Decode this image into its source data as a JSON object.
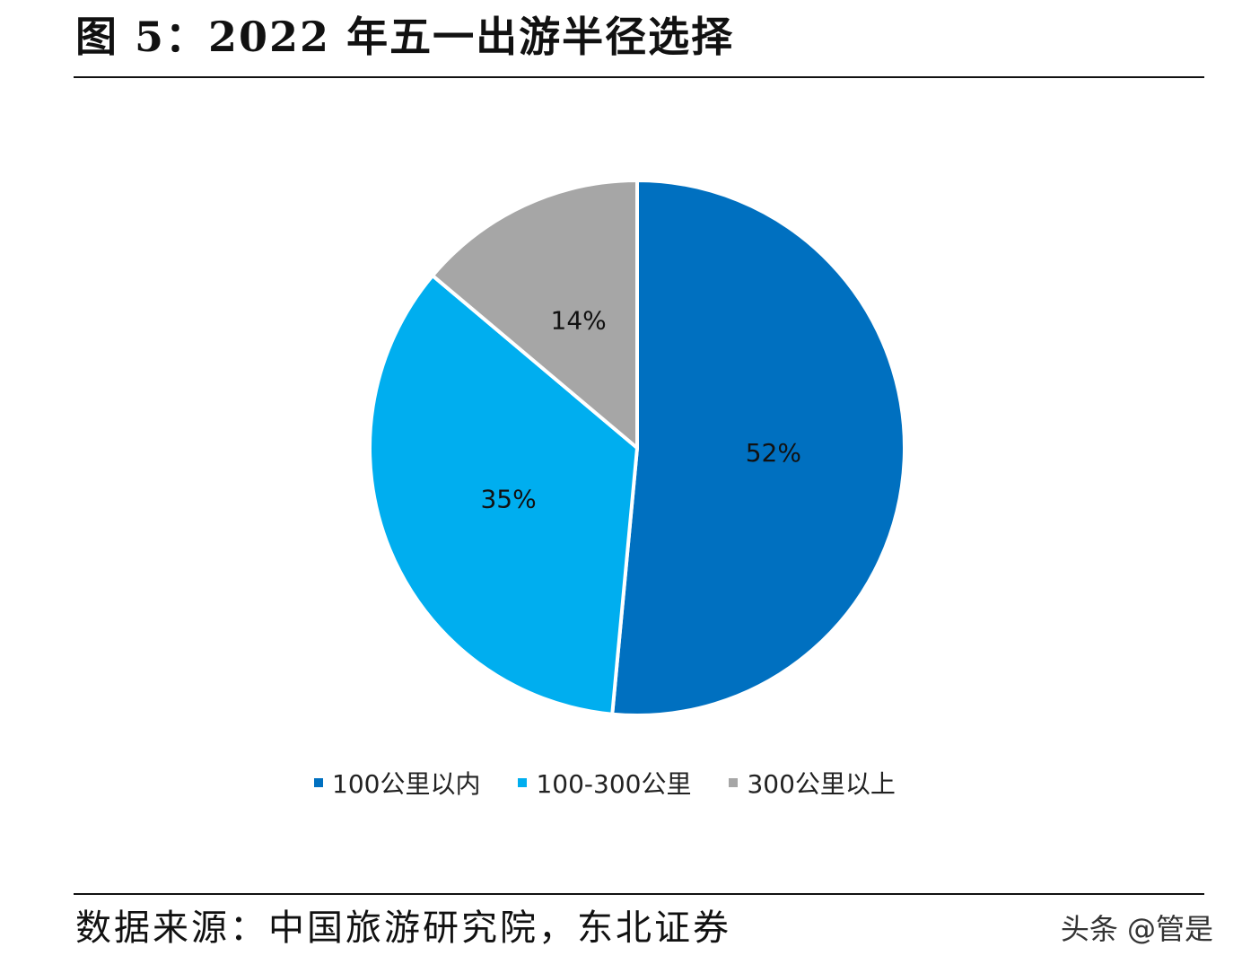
{
  "figure": {
    "title": "图 5：2022 年五一出游半径选择",
    "source": "数据来源：中国旅游研究院，东北证券"
  },
  "watermark": "头条 @管是",
  "chart_data": {
    "type": "pie",
    "title": "",
    "legend_position": "bottom",
    "slices": [
      {
        "label": "100公里以内",
        "value": 52,
        "display": "52%",
        "color": "#0070C0"
      },
      {
        "label": "100-300公里",
        "value": 35,
        "display": "35%",
        "color": "#00AEEF"
      },
      {
        "label": "300公里以上",
        "value": 14,
        "display": "14%",
        "color": "#A6A6A6"
      }
    ]
  }
}
